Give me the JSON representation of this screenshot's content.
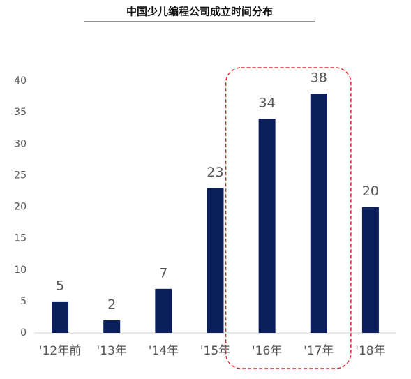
{
  "chart_data": {
    "type": "bar",
    "title": "中国少儿编程公司成立时间分布",
    "categories": [
      "'12年前",
      "'13年",
      "'14年",
      "'15年",
      "'16年",
      "'17年",
      "'18年"
    ],
    "values": [
      5,
      2,
      7,
      23,
      34,
      38,
      20
    ],
    "color": "#0b1f5c",
    "ylim": [
      0,
      40
    ],
    "yticks": [
      0,
      5,
      10,
      15,
      20,
      25,
      30,
      35,
      40
    ],
    "grid": false
  }
}
